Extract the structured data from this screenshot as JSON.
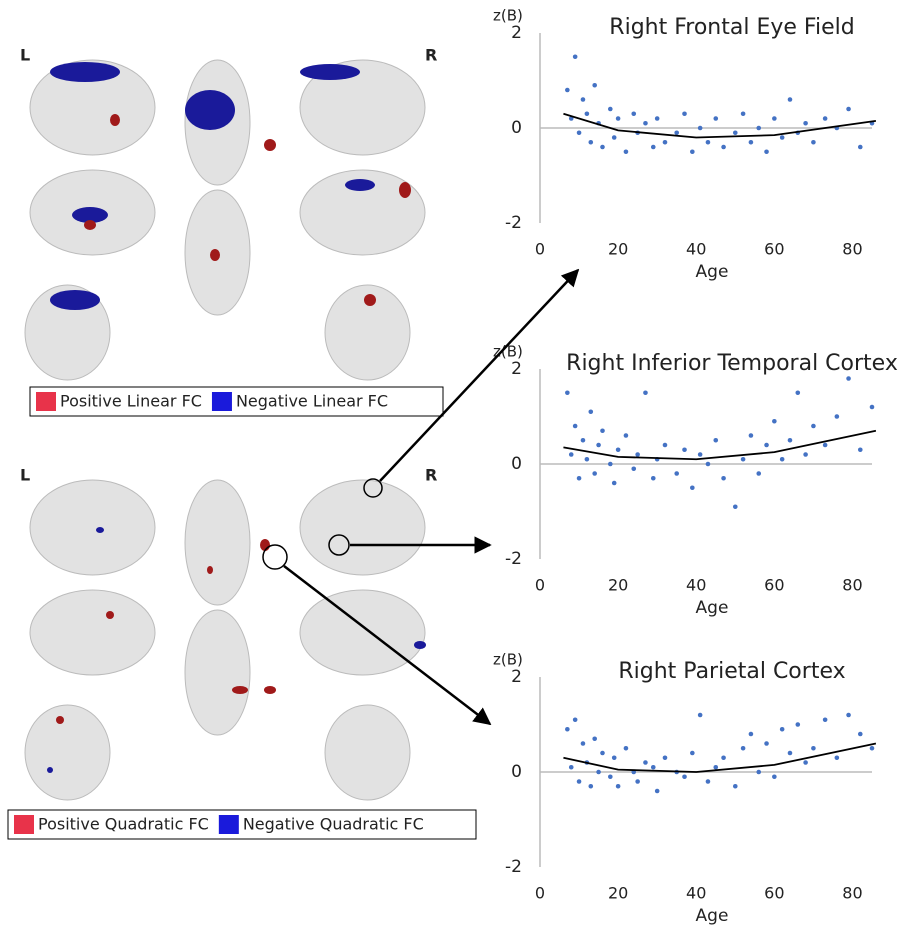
{
  "brain_panels": [
    {
      "left_label": "L",
      "right_label": "R",
      "legend": [
        {
          "label": "Positive Linear FC",
          "color": "#e8334a"
        },
        {
          "label": "Negative Linear FC",
          "color": "#1a1adb"
        }
      ]
    },
    {
      "left_label": "L",
      "right_label": "R",
      "legend": [
        {
          "label": "Positive Quadratic FC",
          "color": "#e8334a"
        },
        {
          "label": "Negative Quadratic FC",
          "color": "#1a1adb"
        }
      ]
    }
  ],
  "chart_data": [
    {
      "type": "scatter",
      "title": "Right Frontal Eye Field",
      "y_label": "z(B)",
      "x_label": "Age",
      "xlim": [
        0,
        85
      ],
      "ylim": [
        -2,
        2
      ],
      "xticks": [
        0,
        20,
        40,
        60,
        80
      ],
      "yticks": [
        -2,
        0,
        2
      ],
      "series": [
        {
          "type": "scatter",
          "color": "#4472c4",
          "x": [
            7,
            8,
            9,
            10,
            11,
            12,
            13,
            14,
            15,
            16,
            18,
            19,
            20,
            22,
            24,
            25,
            27,
            29,
            30,
            32,
            35,
            37,
            39,
            41,
            43,
            45,
            47,
            50,
            52,
            54,
            56,
            58,
            60,
            62,
            64,
            66,
            68,
            70,
            73,
            76,
            79,
            82,
            85
          ],
          "values": [
            0.8,
            0.2,
            1.5,
            -0.1,
            0.6,
            0.3,
            -0.3,
            0.9,
            0.1,
            -0.4,
            0.4,
            -0.2,
            0.2,
            -0.5,
            0.3,
            -0.1,
            0.1,
            -0.4,
            0.2,
            -0.3,
            -0.1,
            0.3,
            -0.5,
            0.0,
            -0.3,
            0.2,
            -0.4,
            -0.1,
            0.3,
            -0.3,
            0.0,
            -0.5,
            0.2,
            -0.2,
            0.6,
            -0.1,
            0.1,
            -0.3,
            0.2,
            0.0,
            0.4,
            -0.4,
            0.1
          ]
        },
        {
          "type": "line",
          "color": "#000000",
          "x": [
            6,
            20,
            40,
            60,
            86
          ],
          "values": [
            0.3,
            -0.05,
            -0.2,
            -0.15,
            0.15
          ]
        }
      ]
    },
    {
      "type": "scatter",
      "title": "Right Inferior Temporal Cortex",
      "y_label": "z(B)",
      "x_label": "Age",
      "xlim": [
        0,
        85
      ],
      "ylim": [
        -2,
        2
      ],
      "xticks": [
        0,
        20,
        40,
        60,
        80
      ],
      "yticks": [
        -2,
        0,
        2
      ],
      "series": [
        {
          "type": "scatter",
          "color": "#4472c4",
          "x": [
            7,
            8,
            9,
            10,
            11,
            12,
            13,
            14,
            15,
            16,
            18,
            19,
            20,
            22,
            24,
            25,
            27,
            29,
            30,
            32,
            35,
            37,
            39,
            41,
            43,
            45,
            47,
            50,
            52,
            54,
            56,
            58,
            60,
            62,
            64,
            66,
            68,
            70,
            73,
            76,
            79,
            82,
            85
          ],
          "values": [
            1.5,
            0.2,
            0.8,
            -0.3,
            0.5,
            0.1,
            1.1,
            -0.2,
            0.4,
            0.7,
            0.0,
            -0.4,
            0.3,
            0.6,
            -0.1,
            0.2,
            1.5,
            -0.3,
            0.1,
            0.4,
            -0.2,
            0.3,
            -0.5,
            0.2,
            0.0,
            0.5,
            -0.3,
            -0.9,
            0.1,
            0.6,
            -0.2,
            0.4,
            0.9,
            0.1,
            0.5,
            1.5,
            0.2,
            0.8,
            0.4,
            1.0,
            1.8,
            0.3,
            1.2
          ]
        },
        {
          "type": "line",
          "color": "#000000",
          "x": [
            6,
            20,
            40,
            60,
            86
          ],
          "values": [
            0.35,
            0.15,
            0.1,
            0.25,
            0.7
          ]
        }
      ]
    },
    {
      "type": "scatter",
      "title": "Right Parietal Cortex",
      "y_label": "z(B)",
      "x_label": "Age",
      "xlim": [
        0,
        85
      ],
      "ylim": [
        -2,
        2
      ],
      "xticks": [
        0,
        20,
        40,
        60,
        80
      ],
      "yticks": [
        -2,
        0,
        2
      ],
      "series": [
        {
          "type": "scatter",
          "color": "#4472c4",
          "x": [
            7,
            8,
            9,
            10,
            11,
            12,
            13,
            14,
            15,
            16,
            18,
            19,
            20,
            22,
            24,
            25,
            27,
            29,
            30,
            32,
            35,
            37,
            39,
            41,
            43,
            45,
            47,
            50,
            52,
            54,
            56,
            58,
            60,
            62,
            64,
            66,
            68,
            70,
            73,
            76,
            79,
            82,
            85
          ],
          "values": [
            0.9,
            0.1,
            1.1,
            -0.2,
            0.6,
            0.2,
            -0.3,
            0.7,
            0.0,
            0.4,
            -0.1,
            0.3,
            -0.3,
            0.5,
            0.0,
            -0.2,
            0.2,
            0.1,
            -0.4,
            0.3,
            0.0,
            -0.1,
            0.4,
            1.2,
            -0.2,
            0.1,
            0.3,
            -0.3,
            0.5,
            0.8,
            0.0,
            0.6,
            -0.1,
            0.9,
            0.4,
            1.0,
            0.2,
            0.5,
            1.1,
            0.3,
            1.2,
            0.8,
            0.5
          ]
        },
        {
          "type": "line",
          "color": "#000000",
          "x": [
            6,
            20,
            40,
            60,
            86
          ],
          "values": [
            0.3,
            0.05,
            0.0,
            0.15,
            0.6
          ]
        }
      ]
    }
  ]
}
